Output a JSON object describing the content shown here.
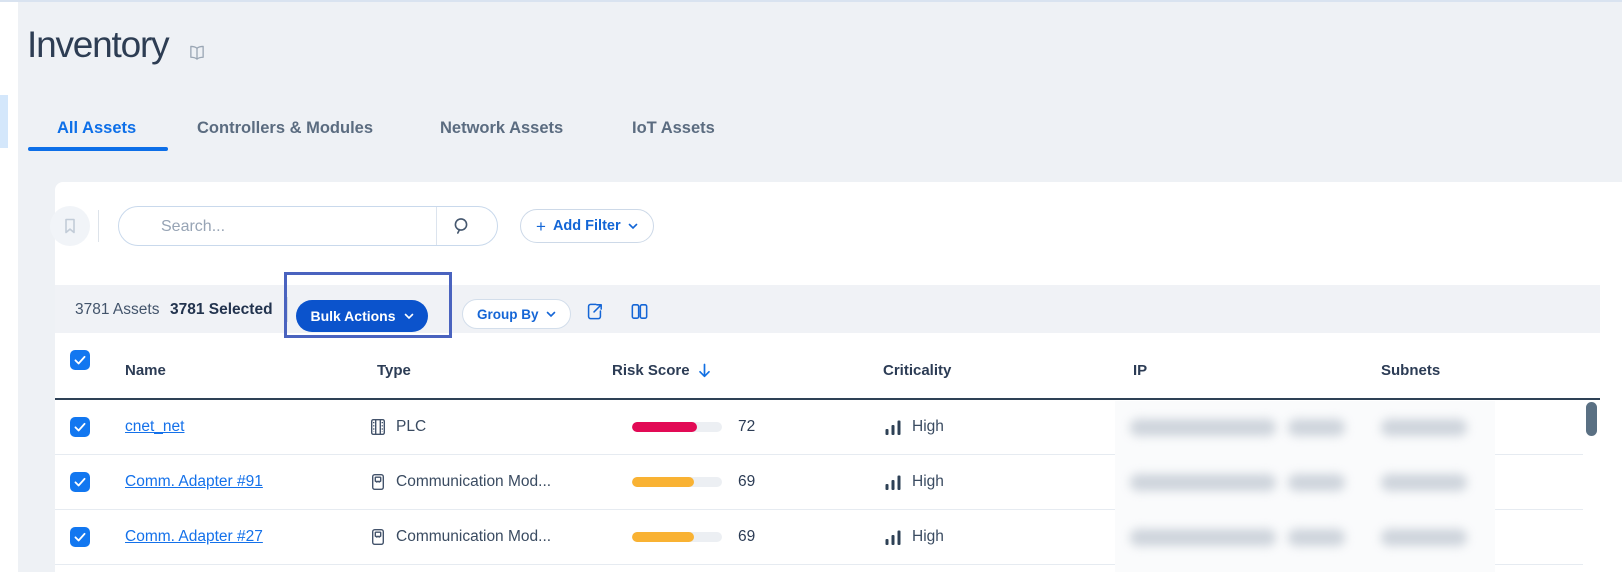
{
  "page": {
    "title": "Inventory"
  },
  "tabs": [
    {
      "label": "All Assets",
      "active": true
    },
    {
      "label": "Controllers & Modules",
      "active": false
    },
    {
      "label": "Network Assets",
      "active": false
    },
    {
      "label": "IoT Assets",
      "active": false
    }
  ],
  "filter_bar": {
    "search_placeholder": "Search...",
    "plus_glyph": "+",
    "add_filter_label": "Add Filter"
  },
  "toolbar": {
    "assets_count_label": "3781 Assets",
    "selected_count_label": "3781 Selected",
    "bulk_actions_label": "Bulk Actions",
    "group_by_label": "Group By"
  },
  "annotation": {
    "highlight_target": "bulk-actions-button",
    "border_color": "#4a63bf"
  },
  "table": {
    "columns": [
      {
        "label": "Name"
      },
      {
        "label": "Type"
      },
      {
        "label": "Risk Score"
      },
      {
        "label": "Criticality"
      },
      {
        "label": "IP"
      },
      {
        "label": "Subnets"
      }
    ],
    "sort": {
      "column": "Risk Score",
      "direction": "desc"
    },
    "rows": [
      {
        "selected": true,
        "name": "cnet_net",
        "type": "PLC",
        "type_icon": "plc-icon",
        "risk_score": 72,
        "risk_color": "#e20a55",
        "criticality": "High",
        "ip_blurred": true,
        "subnets_blurred": true
      },
      {
        "selected": true,
        "name": "Comm. Adapter #91",
        "type": "Communication Mod...",
        "type_icon": "communication-module-icon",
        "risk_score": 69,
        "risk_color": "#f9b233",
        "criticality": "High",
        "ip_blurred": true,
        "subnets_blurred": true
      },
      {
        "selected": true,
        "name": "Comm. Adapter #27",
        "type": "Communication Mod...",
        "type_icon": "communication-module-icon",
        "risk_score": 69,
        "risk_color": "#f9b233",
        "criticality": "High",
        "ip_blurred": true,
        "subnets_blurred": true
      }
    ]
  },
  "icons": [
    "book-icon",
    "bookmark-icon",
    "search-icon",
    "plus-icon",
    "chevron-down-icon",
    "export-icon",
    "columns-icon",
    "sort-descending-icon",
    "checkbox-check-icon",
    "plc-icon",
    "communication-module-icon",
    "criticality-bars-icon"
  ],
  "colors": {
    "accent_blue": "#0d6fe8",
    "bulk_button_blue": "#0b53cc",
    "risk_red": "#e20a55",
    "risk_orange": "#f9b233",
    "annotation_border": "#4a63bf",
    "toolbar_background": "#f0f2f6",
    "header_border": "#2e4156"
  }
}
